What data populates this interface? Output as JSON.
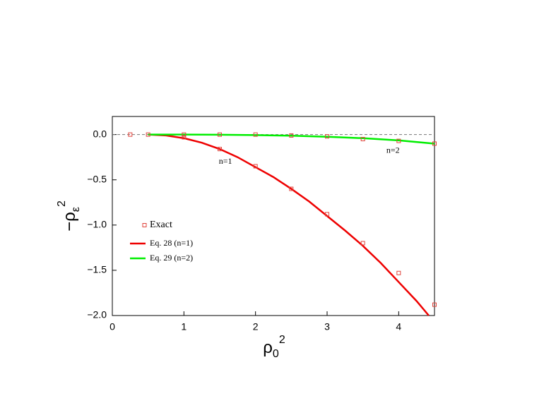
{
  "chart_data": {
    "type": "scatter-line",
    "xlabel": [
      "ρ",
      "0",
      "2"
    ],
    "ylabel": [
      "−ρ",
      "ε",
      "2"
    ],
    "xlim": [
      0,
      4.5
    ],
    "ylim": [
      -2.0,
      0.2
    ],
    "xticks": [
      0,
      1,
      2,
      3,
      4
    ],
    "yticks": [
      {
        "value": 0,
        "label": "0.0"
      },
      {
        "value": -0.5,
        "label": "−0.5"
      },
      {
        "value": -1.0,
        "label": "−1.0"
      },
      {
        "value": -1.5,
        "label": "−1.5"
      },
      {
        "value": -2.0,
        "label": "−2.0"
      }
    ],
    "reference_line": 0,
    "series": [
      {
        "name": "Exact",
        "kind": "points",
        "color": "#e0443c",
        "x": [
          0.25,
          0.5,
          1,
          1.5,
          2,
          2.5,
          3,
          3.5,
          4,
          4.5,
          1,
          1.5,
          2,
          2.5,
          3,
          3.5,
          4,
          4.5
        ],
        "values": [
          0,
          0,
          -0.03,
          -0.16,
          -0.35,
          -0.6,
          -0.88,
          -1.2,
          -1.53,
          -1.88,
          0,
          0,
          0,
          -0.01,
          -0.02,
          -0.05,
          -0.07,
          -0.1
        ]
      },
      {
        "name": "Eq. 28 (n=1)",
        "kind": "line",
        "color": "#ee0000",
        "x": [
          0.5,
          0.75,
          1,
          1.25,
          1.5,
          1.75,
          2,
          2.25,
          2.5,
          2.75,
          3,
          3.25,
          3.5,
          3.75,
          4,
          4.25,
          4.42
        ],
        "values": [
          0,
          -0.01,
          -0.04,
          -0.09,
          -0.16,
          -0.25,
          -0.36,
          -0.47,
          -0.6,
          -0.74,
          -0.9,
          -1.06,
          -1.23,
          -1.42,
          -1.63,
          -1.84,
          -2.0
        ]
      },
      {
        "name": "Eq. 29 (n=2)",
        "kind": "line",
        "color": "#00ee00",
        "x": [
          0.5,
          1,
          1.5,
          2,
          2.5,
          3,
          3.5,
          4,
          4.5
        ],
        "values": [
          0,
          0,
          -0.002,
          -0.006,
          -0.013,
          -0.024,
          -0.04,
          -0.064,
          -0.1
        ]
      }
    ],
    "annotations": [
      {
        "text": "n=1",
        "x": 1.58,
        "y": -0.3
      },
      {
        "text": "n=2",
        "x": 3.92,
        "y": -0.18
      }
    ]
  }
}
